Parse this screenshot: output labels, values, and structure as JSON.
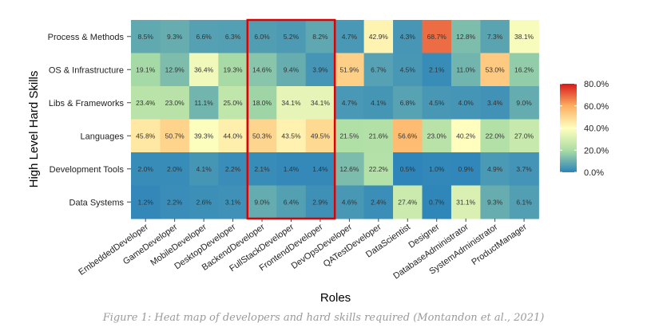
{
  "chart_data": {
    "type": "heatmap",
    "xlabel": "Roles",
    "ylabel": "High Level Hard Skills",
    "columns": [
      "EmbeddedDeveloper",
      "GameDeveloper",
      "MobileDeveloper",
      "DesktopDeveloper",
      "BackendDeveloper",
      "FullStackDeveloper",
      "FrontendDeveloper",
      "DevOpsDeveloper",
      "QATestDeveloper",
      "DataScientist",
      "Designer",
      "DatabaseAdministrator",
      "SystemAdministrator",
      "ProductManager"
    ],
    "rows": [
      "Process & Methods",
      "OS & Infrastructure",
      "Libs & Frameworks",
      "Languages",
      "Development Tools",
      "Data Systems"
    ],
    "values": [
      [
        8.5,
        9.3,
        6.6,
        6.3,
        6.0,
        5.2,
        8.2,
        4.7,
        42.9,
        4.3,
        68.7,
        12.8,
        7.3,
        38.1
      ],
      [
        19.1,
        12.9,
        36.4,
        19.3,
        14.6,
        9.4,
        3.9,
        51.9,
        6.7,
        4.5,
        2.1,
        11.0,
        53.0,
        16.2
      ],
      [
        23.4,
        23.0,
        11.1,
        25.0,
        18.0,
        34.1,
        34.1,
        4.7,
        4.1,
        6.8,
        4.5,
        4.0,
        3.4,
        9.0
      ],
      [
        45.8,
        50.7,
        39.3,
        44.0,
        50.3,
        43.5,
        49.5,
        21.5,
        21.6,
        56.6,
        23.0,
        40.2,
        22.0,
        27.0
      ],
      [
        2.0,
        2.0,
        4.1,
        2.2,
        2.1,
        1.4,
        1.4,
        12.6,
        22.2,
        0.5,
        1.0,
        0.9,
        4.9,
        3.7
      ],
      [
        1.2,
        2.2,
        2.6,
        3.1,
        9.0,
        6.4,
        2.9,
        4.6,
        2.4,
        27.4,
        0.7,
        31.1,
        9.3,
        6.1
      ]
    ],
    "value_suffix": "%",
    "color_range": [
      0,
      80
    ],
    "colorbar_ticks": [
      "80.0%",
      "60.0%",
      "40.0%",
      "20.0%",
      "0.0%"
    ],
    "colorbar_tick_values": [
      80,
      60,
      40,
      20,
      0
    ],
    "colorscale": [
      "#2b83ba",
      "#abdda4",
      "#ffffbf",
      "#fdae61",
      "#d7191c"
    ],
    "highlight": {
      "columns": [
        "BackendDeveloper",
        "FullStackDeveloper",
        "FrontendDeveloper"
      ],
      "color": "#e00000"
    }
  },
  "caption": "Figure 1: Heat map of developers and hard skills required (Montandon et al., 2021)"
}
